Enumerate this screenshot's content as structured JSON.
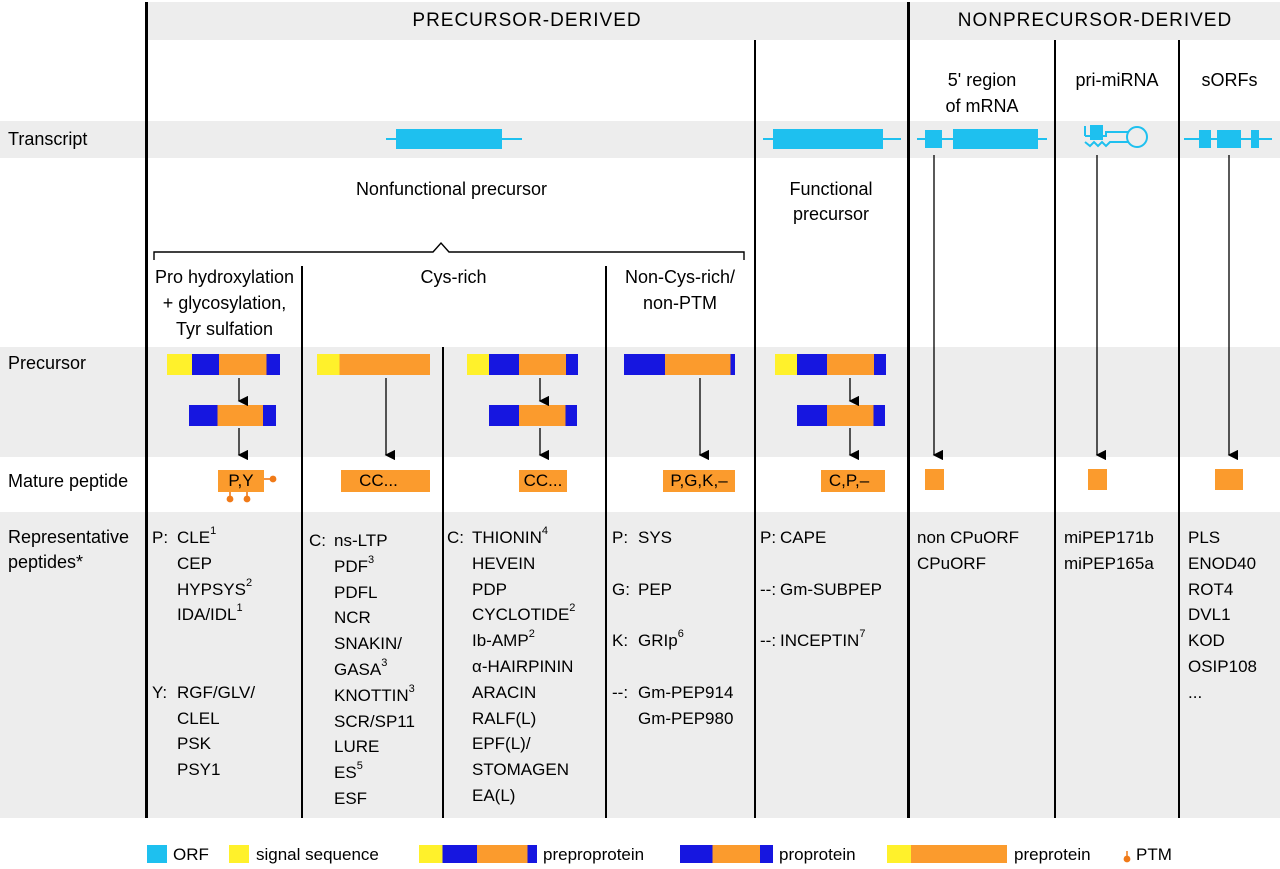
{
  "header": {
    "left": "PRECURSOR-DERIVED",
    "right": "NONPRECURSOR-DERIVED"
  },
  "row_labels": {
    "transcript": "Transcript",
    "precursor": "Precursor",
    "mature_peptide": "Mature peptide",
    "representative_1": "Representative",
    "representative_2": "peptides*"
  },
  "transcript_sources": {
    "five_prime_1": "5' region",
    "five_prime_2": "of mRNA",
    "pri_mirna": "pri-miRNA",
    "sorfs": "sORFs"
  },
  "precursor_types": {
    "nonfunctional": "Nonfunctional precursor",
    "functional_1": "Functional",
    "functional_2": "precursor"
  },
  "subgroups": {
    "pro_hydrox": [
      "Pro hydroxylation",
      "+ glycosylation,",
      "Tyr sulfation"
    ],
    "cys_rich": "Cys-rich",
    "non_cys": [
      "Non-Cys-rich/",
      "non-PTM"
    ]
  },
  "mature_labels": {
    "col1": "P,Y",
    "col2": "CC...",
    "col3": "CC...",
    "col4": "P,G,K,–",
    "col5": "C,P,–"
  },
  "peptides": {
    "col1": [
      {
        "pre": "P:",
        "name": "CLE",
        "sup": "1"
      },
      {
        "pre": "",
        "name": "CEP",
        "sup": ""
      },
      {
        "pre": "",
        "name": "HYPSYS",
        "sup": "2"
      },
      {
        "pre": "",
        "name": "IDA/IDL",
        "sup": "1"
      },
      {
        "pre": "",
        "name": "",
        "sup": ""
      },
      {
        "pre": "",
        "name": "",
        "sup": ""
      },
      {
        "pre": "Y:",
        "name": "RGF/GLV/",
        "sup": ""
      },
      {
        "pre": "",
        "name": "CLEL",
        "sup": ""
      },
      {
        "pre": "",
        "name": "PSK",
        "sup": ""
      },
      {
        "pre": "",
        "name": "PSY1",
        "sup": ""
      }
    ],
    "col2": [
      {
        "pre": "C:",
        "name": "ns-LTP",
        "sup": ""
      },
      {
        "pre": "",
        "name": "PDF",
        "sup": "3"
      },
      {
        "pre": "",
        "name": "PDFL",
        "sup": ""
      },
      {
        "pre": "",
        "name": "NCR",
        "sup": ""
      },
      {
        "pre": "",
        "name": "SNAKIN/",
        "sup": ""
      },
      {
        "pre": "",
        "name": "GASA",
        "sup": "3"
      },
      {
        "pre": "",
        "name": "KNOTTIN",
        "sup": "3"
      },
      {
        "pre": "",
        "name": "SCR/SP11",
        "sup": ""
      },
      {
        "pre": "",
        "name": "LURE",
        "sup": ""
      },
      {
        "pre": "",
        "name": "ES",
        "sup": "5"
      },
      {
        "pre": "",
        "name": "ESF",
        "sup": ""
      }
    ],
    "col3": [
      {
        "pre": "C:",
        "name": "THIONIN",
        "sup": "4"
      },
      {
        "pre": "",
        "name": "HEVEIN",
        "sup": ""
      },
      {
        "pre": "",
        "name": "PDP",
        "sup": ""
      },
      {
        "pre": "",
        "name": "CYCLOTIDE",
        "sup": "2"
      },
      {
        "pre": "",
        "name": "Ib-AMP",
        "sup": "2"
      },
      {
        "pre": "",
        "name": "α-HAIRPININ",
        "sup": ""
      },
      {
        "pre": "",
        "name": "ARACIN",
        "sup": ""
      },
      {
        "pre": "",
        "name": "RALF(L)",
        "sup": ""
      },
      {
        "pre": "",
        "name": "EPF(L)/",
        "sup": ""
      },
      {
        "pre": "",
        "name": "STOMAGEN",
        "sup": ""
      },
      {
        "pre": "",
        "name": "EA(L)",
        "sup": ""
      }
    ],
    "col4": [
      {
        "pre": "P:",
        "name": "SYS",
        "sup": ""
      },
      {
        "pre": "",
        "name": "",
        "sup": ""
      },
      {
        "pre": "G:",
        "name": "PEP",
        "sup": ""
      },
      {
        "pre": "",
        "name": "",
        "sup": ""
      },
      {
        "pre": "K:",
        "name": "GRIp",
        "sup": "6"
      },
      {
        "pre": "",
        "name": "",
        "sup": ""
      },
      {
        "pre": "--:",
        "name": "Gm-PEP914",
        "sup": ""
      },
      {
        "pre": "",
        "name": "Gm-PEP980",
        "sup": ""
      }
    ],
    "col5": [
      {
        "pre": "P:",
        "name": "CAPE",
        "sup": ""
      },
      {
        "pre": "",
        "name": "",
        "sup": ""
      },
      {
        "pre": "--:",
        "name": "Gm-SUBPEP",
        "sup": ""
      },
      {
        "pre": "",
        "name": "",
        "sup": ""
      },
      {
        "pre": "--:",
        "name": "INCEPTIN",
        "sup": "7"
      }
    ],
    "col6": [
      {
        "pre": "",
        "name": "non CPuORF",
        "sup": ""
      },
      {
        "pre": "",
        "name": "CPuORF",
        "sup": ""
      }
    ],
    "col7": [
      {
        "pre": "",
        "name": "miPEP171b",
        "sup": ""
      },
      {
        "pre": "",
        "name": "miPEP165a",
        "sup": ""
      }
    ],
    "col8": [
      {
        "pre": "",
        "name": "PLS",
        "sup": ""
      },
      {
        "pre": "",
        "name": "ENOD40",
        "sup": ""
      },
      {
        "pre": "",
        "name": "ROT4",
        "sup": ""
      },
      {
        "pre": "",
        "name": "DVL1",
        "sup": ""
      },
      {
        "pre": "",
        "name": "KOD",
        "sup": ""
      },
      {
        "pre": "",
        "name": "OSIP108",
        "sup": ""
      },
      {
        "pre": "",
        "name": "...",
        "sup": ""
      }
    ]
  },
  "legend": {
    "orf": "ORF",
    "signal": "signal sequence",
    "prepro": "preproprotein",
    "pro": "proprotein",
    "pre": "preprotein",
    "ptm": "PTM"
  },
  "colors": {
    "orf": "#1ec0ef",
    "signal": "#fff12b",
    "pro_domain": "#1616e0",
    "peptide": "#fb9b2d",
    "ptm": "#f07a18",
    "band": "#ededed"
  }
}
